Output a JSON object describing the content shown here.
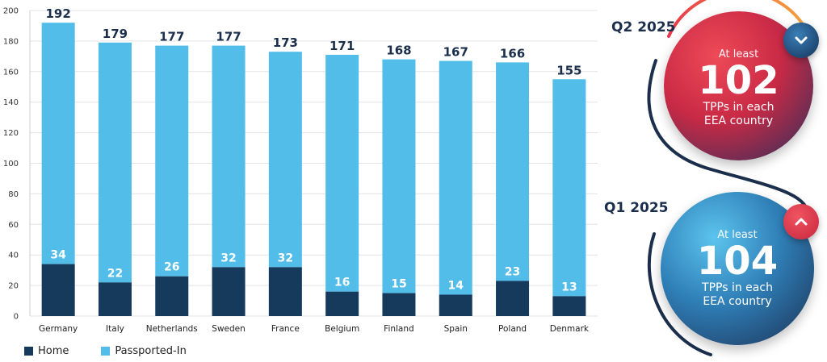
{
  "chart_data": {
    "type": "bar",
    "stacked": true,
    "categories": [
      "Germany",
      "Italy",
      "Netherlands",
      "Sweden",
      "France",
      "Belgium",
      "Finland",
      "Spain",
      "Poland",
      "Denmark"
    ],
    "totals": [
      192,
      179,
      177,
      177,
      173,
      171,
      168,
      167,
      166,
      155
    ],
    "series": [
      {
        "name": "Home",
        "values": [
          34,
          22,
          26,
          32,
          32,
          16,
          15,
          14,
          23,
          13
        ],
        "color": "#163a5c"
      },
      {
        "name": "Passported-In",
        "values": [
          158,
          157,
          151,
          145,
          141,
          155,
          153,
          153,
          143,
          142
        ],
        "color": "#52bde9"
      }
    ],
    "ylim": [
      0,
      200
    ],
    "yticks": [
      0,
      20,
      40,
      60,
      80,
      100,
      120,
      140,
      160,
      180,
      200
    ],
    "grid": true,
    "legend_position": "bottom-left"
  },
  "legend": {
    "home": "Home",
    "passported": "Passported-In"
  },
  "kpi": {
    "q2": {
      "label": "Q2 2025",
      "prefix": "At least",
      "value": "102",
      "desc_line1": "TPPs in each",
      "desc_line2": "EEA country",
      "trend_icon": "chevron-down-icon"
    },
    "q1": {
      "label": "Q1 2025",
      "prefix": "At least",
      "value": "104",
      "desc_line1": "TPPs in each",
      "desc_line2": "EEA country",
      "trend_icon": "chevron-up-icon"
    }
  },
  "colors": {
    "home": "#163a5c",
    "passported": "#52bde9",
    "q2_circle": "#d8334a",
    "q1_circle": "#3a8fc4",
    "label_dark": "#1b2f4c"
  }
}
